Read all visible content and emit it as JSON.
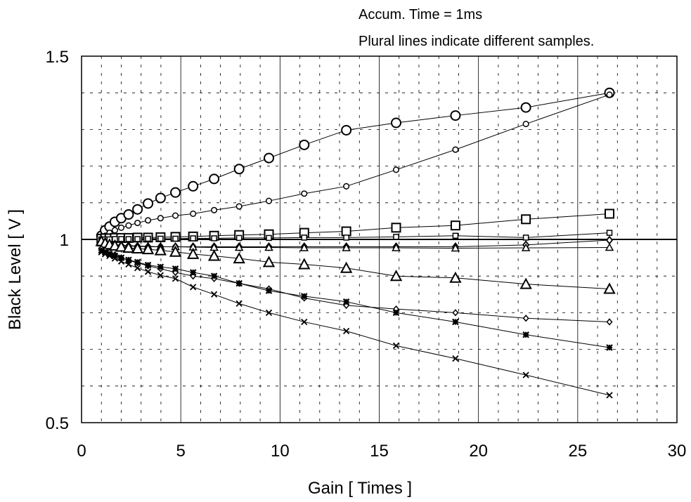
{
  "chart_data": {
    "type": "scatter",
    "title": "",
    "xlabel": "Gain  [ Times ]",
    "ylabel": "Black Level  [ V ]",
    "xlim": [
      0,
      30
    ],
    "ylim": [
      0.5,
      1.5
    ],
    "x_ticks": [
      "0",
      "5",
      "10",
      "15",
      "20",
      "25",
      "30"
    ],
    "y_ticks": [
      "0.5",
      "1",
      "1.5"
    ],
    "grid": true,
    "annotations": [
      "Accum. Time = 1ms",
      "Plural lines indicate different samples."
    ],
    "reference_lines": [
      {
        "y": 1.0
      }
    ],
    "gains": [
      1.0,
      1.19,
      1.41,
      1.68,
      2.0,
      2.37,
      2.82,
      3.35,
      3.98,
      4.73,
      5.62,
      6.68,
      7.94,
      9.44,
      11.22,
      13.34,
      15.85,
      18.84,
      22.39,
      26.6
    ],
    "series": [
      {
        "marker": "circle-large",
        "values": [
          1.01,
          1.025,
          1.035,
          1.048,
          1.058,
          1.068,
          1.082,
          1.098,
          1.113,
          1.128,
          1.145,
          1.165,
          1.192,
          1.222,
          1.258,
          1.298,
          1.318,
          1.338,
          1.36,
          1.4
        ]
      },
      {
        "marker": "circle-small",
        "values": [
          1.005,
          1.01,
          1.018,
          1.025,
          1.032,
          1.038,
          1.045,
          1.052,
          1.058,
          1.065,
          1.07,
          1.08,
          1.09,
          1.105,
          1.125,
          1.145,
          1.19,
          1.245,
          1.315,
          1.395
        ]
      },
      {
        "marker": "square-large",
        "values": [
          1.002,
          1.003,
          1.003,
          1.004,
          1.004,
          1.004,
          1.005,
          1.005,
          1.006,
          1.007,
          1.008,
          1.01,
          1.012,
          1.014,
          1.018,
          1.022,
          1.032,
          1.038,
          1.055,
          1.07
        ]
      },
      {
        "marker": "square-small",
        "values": [
          1.0,
          1.0,
          1.0,
          1.001,
          1.001,
          1.001,
          1.001,
          1.002,
          1.002,
          1.002,
          1.003,
          1.003,
          1.004,
          1.004,
          1.005,
          1.005,
          1.007,
          1.01,
          1.005,
          1.018
        ]
      },
      {
        "marker": "diamond-large",
        "values": [
          0.99,
          0.988,
          0.986,
          0.984,
          0.983,
          0.982,
          0.981,
          0.98,
          0.98,
          0.98,
          0.98,
          0.98,
          0.98,
          0.98,
          0.98,
          0.98,
          0.98,
          0.98,
          0.985,
          0.998
        ]
      },
      {
        "marker": "triangle-small",
        "values": [
          0.99,
          0.988,
          0.986,
          0.985,
          0.984,
          0.983,
          0.982,
          0.981,
          0.98,
          0.98,
          0.979,
          0.978,
          0.978,
          0.978,
          0.977,
          0.977,
          0.977,
          0.976,
          0.977,
          0.978
        ]
      },
      {
        "marker": "triangle-large",
        "values": [
          0.995,
          0.99,
          0.986,
          0.983,
          0.98,
          0.977,
          0.975,
          0.973,
          0.97,
          0.966,
          0.96,
          0.955,
          0.948,
          0.938,
          0.932,
          0.922,
          0.9,
          0.895,
          0.878,
          0.865
        ]
      },
      {
        "marker": "diamond-small",
        "values": [
          0.975,
          0.97,
          0.965,
          0.958,
          0.95,
          0.943,
          0.936,
          0.928,
          0.92,
          0.91,
          0.9,
          0.893,
          0.88,
          0.865,
          0.84,
          0.82,
          0.81,
          0.8,
          0.785,
          0.775
        ]
      },
      {
        "marker": "cross-bold",
        "values": [
          0.97,
          0.965,
          0.96,
          0.955,
          0.95,
          0.944,
          0.938,
          0.93,
          0.925,
          0.92,
          0.91,
          0.9,
          0.88,
          0.86,
          0.845,
          0.83,
          0.8,
          0.775,
          0.74,
          0.705
        ]
      },
      {
        "marker": "cross-small",
        "values": [
          0.965,
          0.96,
          0.955,
          0.948,
          0.94,
          0.932,
          0.922,
          0.912,
          0.902,
          0.893,
          0.87,
          0.85,
          0.825,
          0.8,
          0.775,
          0.75,
          0.71,
          0.675,
          0.63,
          0.575
        ]
      }
    ]
  }
}
